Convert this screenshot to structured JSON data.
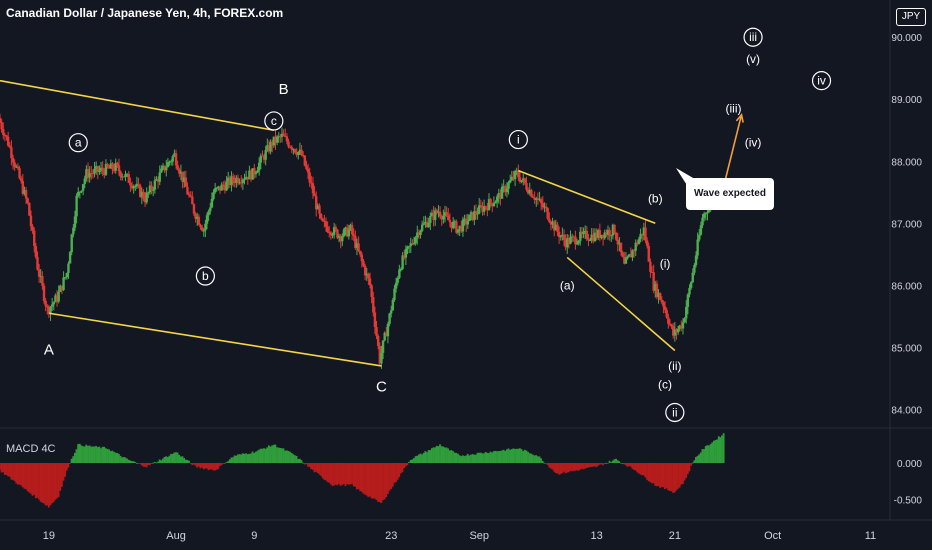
{
  "header": {
    "title": "Canadian Dollar / Japanese Yen, 4h, FOREX.com",
    "currency_badge": "JPY"
  },
  "price_axis": {
    "ticks": [
      "90.000",
      "89.000",
      "88.000",
      "87.000",
      "86.000",
      "85.000",
      "84.000"
    ]
  },
  "macd_panel": {
    "label": "MACD 4C",
    "ticks": [
      "0.000",
      "-0.500"
    ]
  },
  "time_axis": {
    "labels": [
      "19",
      "Aug",
      "9",
      "23",
      "Sep",
      "13",
      "21",
      "Oct",
      "11"
    ]
  },
  "callout": {
    "text": "Wave expected"
  },
  "colors": {
    "background": "#131722",
    "up_candle": "#26a69a",
    "bull_candle": "#4caf50",
    "bear_candle": "#e53935",
    "trendline": "#f5d547",
    "projection": "#f59e3b",
    "macd_up": "#2e9e3a",
    "macd_down": "#b71c1c"
  },
  "chart_data": {
    "type": "candlestick",
    "symbol": "CADJPY",
    "timeframe": "4h",
    "source": "FOREX.com",
    "ylim": [
      83.7,
      90.6
    ],
    "x_start": "Jul 14",
    "x_end": "Oct 13",
    "anchors": [
      {
        "date": "Jul 14",
        "value": 88.7
      },
      {
        "date": "Jul 15",
        "value": 88.3
      },
      {
        "date": "Jul 16",
        "value": 87.8
      },
      {
        "date": "Jul 17",
        "value": 87.3
      },
      {
        "date": "Jul 18",
        "value": 86.3
      },
      {
        "date": "Jul 19",
        "value": 85.6
      },
      {
        "date": "Jul 20",
        "value": 85.8
      },
      {
        "date": "Jul 21",
        "value": 86.2
      },
      {
        "date": "Jul 22",
        "value": 87.4
      },
      {
        "date": "Jul 23",
        "value": 87.8
      },
      {
        "date": "Jul 26",
        "value": 87.9
      },
      {
        "date": "Jul 28",
        "value": 87.6
      },
      {
        "date": "Jul 29",
        "value": 87.4
      },
      {
        "date": "Jul 31",
        "value": 87.9
      },
      {
        "date": "Aug 1",
        "value": 88.1
      },
      {
        "date": "Aug 3",
        "value": 87.2
      },
      {
        "date": "Aug 4",
        "value": 86.9
      },
      {
        "date": "Aug 5",
        "value": 87.5
      },
      {
        "date": "Aug 7",
        "value": 87.7
      },
      {
        "date": "Aug 9",
        "value": 87.8
      },
      {
        "date": "Aug 11",
        "value": 88.3
      },
      {
        "date": "Aug 12",
        "value": 88.4
      },
      {
        "date": "Aug 14",
        "value": 88.1
      },
      {
        "date": "Aug 15",
        "value": 87.6
      },
      {
        "date": "Aug 16",
        "value": 87.0
      },
      {
        "date": "Aug 18",
        "value": 86.8
      },
      {
        "date": "Aug 19",
        "value": 86.9
      },
      {
        "date": "Aug 21",
        "value": 86.0
      },
      {
        "date": "Aug 22",
        "value": 84.8
      },
      {
        "date": "Aug 23",
        "value": 85.5
      },
      {
        "date": "Aug 24",
        "value": 86.3
      },
      {
        "date": "Aug 26",
        "value": 86.9
      },
      {
        "date": "Aug 28",
        "value": 87.2
      },
      {
        "date": "Aug 30",
        "value": 86.9
      },
      {
        "date": "Sep 1",
        "value": 87.2
      },
      {
        "date": "Sep 3",
        "value": 87.4
      },
      {
        "date": "Sep 5",
        "value": 87.8
      },
      {
        "date": "Sep 6",
        "value": 87.6
      },
      {
        "date": "Sep 8",
        "value": 87.2
      },
      {
        "date": "Sep 9",
        "value": 86.9
      },
      {
        "date": "Sep 10",
        "value": 86.7
      },
      {
        "date": "Sep 12",
        "value": 86.8
      },
      {
        "date": "Sep 13",
        "value": 86.8
      },
      {
        "date": "Sep 15",
        "value": 86.9
      },
      {
        "date": "Sep 16",
        "value": 86.3
      },
      {
        "date": "Sep 17",
        "value": 86.6
      },
      {
        "date": "Sep 18",
        "value": 86.9
      },
      {
        "date": "Sep 19",
        "value": 86.0
      },
      {
        "date": "Sep 20",
        "value": 85.7
      },
      {
        "date": "Sep 21",
        "value": 85.2
      },
      {
        "date": "Sep 22",
        "value": 85.4
      },
      {
        "date": "Sep 23",
        "value": 86.2
      },
      {
        "date": "Sep 24",
        "value": 87.1
      },
      {
        "date": "Sep 25",
        "value": 87.4
      },
      {
        "date": "Sep 26",
        "value": 87.6
      }
    ],
    "trendlines": [
      {
        "from": {
          "date": "Jul 14",
          "value": 89.3
        },
        "to": {
          "date": "Aug 11",
          "value": 88.5
        }
      },
      {
        "from": {
          "date": "Jul 19",
          "value": 85.55
        },
        "to": {
          "date": "Aug 22",
          "value": 84.7
        }
      },
      {
        "from": {
          "date": "Sep 5",
          "value": 87.85
        },
        "to": {
          "date": "Sep 19",
          "value": 87.0
        }
      },
      {
        "from": {
          "date": "Sep 10",
          "value": 86.45
        },
        "to": {
          "date": "Sep 21",
          "value": 84.95
        }
      }
    ],
    "projection": {
      "from": {
        "date": "Sep 26",
        "value": 87.6
      },
      "to": {
        "date": "Sep 27",
        "value": 88.75
      }
    },
    "wave_labels": [
      {
        "text": "A",
        "date": "Jul 19",
        "value": 84.95,
        "circled": false,
        "size": "large"
      },
      {
        "text": "a",
        "date": "Jul 22",
        "value": 88.3,
        "circled": true
      },
      {
        "text": "b",
        "date": "Aug 4",
        "value": 86.15,
        "circled": true
      },
      {
        "text": "c",
        "date": "Aug 11",
        "value": 88.65,
        "circled": true
      },
      {
        "text": "B",
        "date": "Aug 12",
        "value": 89.15,
        "circled": false,
        "size": "large"
      },
      {
        "text": "C",
        "date": "Aug 22",
        "value": 84.35,
        "circled": false,
        "size": "large"
      },
      {
        "text": "i",
        "date": "Sep 5",
        "value": 88.35,
        "circled": true
      },
      {
        "text": "(a)",
        "date": "Sep 10",
        "value": 86.0,
        "circled": false
      },
      {
        "text": "(b)",
        "date": "Sep 19",
        "value": 87.4,
        "circled": false
      },
      {
        "text": "(i)",
        "date": "Sep 20",
        "value": 86.35,
        "circled": false
      },
      {
        "text": "(ii)",
        "date": "Sep 21",
        "value": 84.7,
        "circled": false
      },
      {
        "text": "(c)",
        "date": "Sep 20",
        "value": 84.4,
        "circled": false
      },
      {
        "text": "ii",
        "date": "Sep 21",
        "value": 83.95,
        "circled": true
      },
      {
        "text": "(iii)",
        "date": "Sep 27",
        "value": 88.85,
        "circled": false
      },
      {
        "text": "(iv)",
        "date": "Sep 29",
        "value": 88.3,
        "circled": false
      },
      {
        "text": "iii",
        "date": "Sep 29",
        "value": 90.0,
        "circled": true
      },
      {
        "text": "(v)",
        "date": "Sep 29",
        "value": 89.65,
        "circled": false
      },
      {
        "text": "iv",
        "date": "Oct 6",
        "value": 89.3,
        "circled": true
      }
    ],
    "macd": {
      "ylim": [
        -0.75,
        0.45
      ],
      "anchors": [
        {
          "date": "Jul 14",
          "value": -0.1
        },
        {
          "date": "Jul 16",
          "value": -0.3
        },
        {
          "date": "Jul 18",
          "value": -0.5
        },
        {
          "date": "Jul 19",
          "value": -0.6
        },
        {
          "date": "Jul 20",
          "value": -0.45
        },
        {
          "date": "Jul 21",
          "value": -0.05
        },
        {
          "date": "Jul 22",
          "value": 0.25
        },
        {
          "date": "Jul 25",
          "value": 0.2
        },
        {
          "date": "Jul 27",
          "value": 0.05
        },
        {
          "date": "Jul 29",
          "value": -0.05
        },
        {
          "date": "Aug 1",
          "value": 0.15
        },
        {
          "date": "Aug 3",
          "value": -0.05
        },
        {
          "date": "Aug 5",
          "value": -0.1
        },
        {
          "date": "Aug 7",
          "value": 0.1
        },
        {
          "date": "Aug 9",
          "value": 0.15
        },
        {
          "date": "Aug 11",
          "value": 0.25
        },
        {
          "date": "Aug 13",
          "value": 0.12
        },
        {
          "date": "Aug 15",
          "value": -0.1
        },
        {
          "date": "Aug 17",
          "value": -0.3
        },
        {
          "date": "Aug 19",
          "value": -0.3
        },
        {
          "date": "Aug 20",
          "value": -0.4
        },
        {
          "date": "Aug 22",
          "value": -0.55
        },
        {
          "date": "Aug 23",
          "value": -0.35
        },
        {
          "date": "Aug 25",
          "value": 0.05
        },
        {
          "date": "Aug 28",
          "value": 0.25
        },
        {
          "date": "Aug 30",
          "value": 0.1
        },
        {
          "date": "Sep 2",
          "value": 0.15
        },
        {
          "date": "Sep 5",
          "value": 0.2
        },
        {
          "date": "Sep 7",
          "value": 0.1
        },
        {
          "date": "Sep 9",
          "value": -0.15
        },
        {
          "date": "Sep 11",
          "value": -0.1
        },
        {
          "date": "Sep 13",
          "value": -0.05
        },
        {
          "date": "Sep 15",
          "value": 0.05
        },
        {
          "date": "Sep 17",
          "value": -0.1
        },
        {
          "date": "Sep 19",
          "value": -0.3
        },
        {
          "date": "Sep 21",
          "value": -0.4
        },
        {
          "date": "Sep 22",
          "value": -0.25
        },
        {
          "date": "Sep 23",
          "value": 0.05
        },
        {
          "date": "Sep 24",
          "value": 0.2
        },
        {
          "date": "Sep 26",
          "value": 0.4
        }
      ]
    }
  }
}
